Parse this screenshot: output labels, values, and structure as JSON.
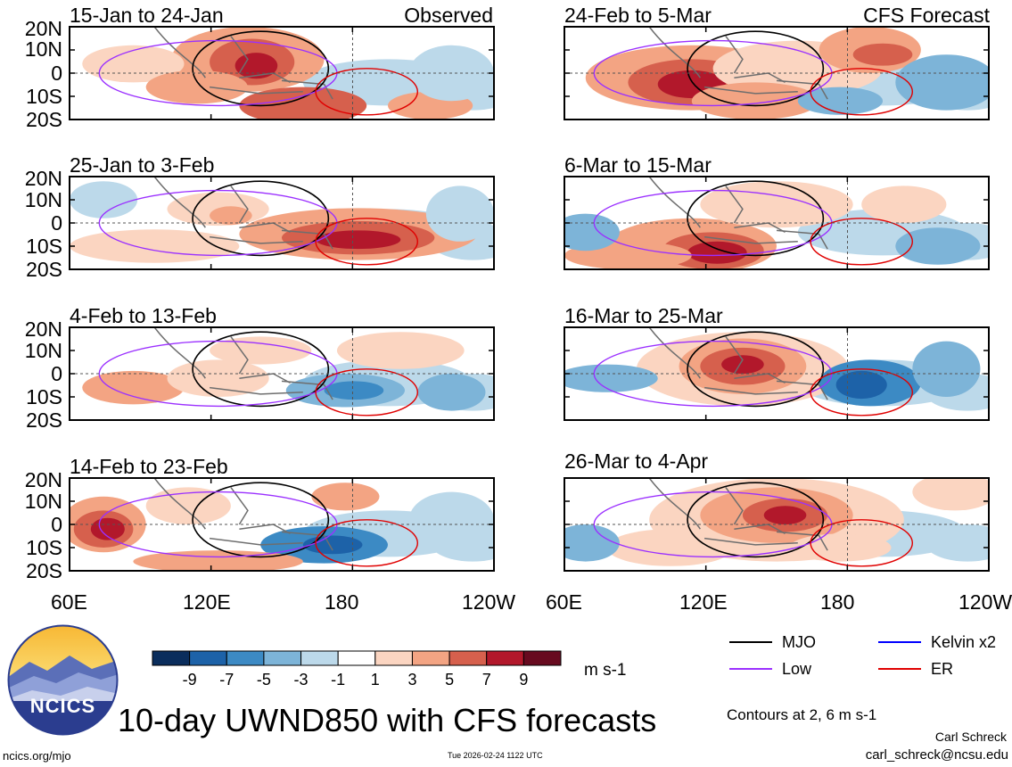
{
  "panels": [
    {
      "title": "15-Jan to 24-Jan",
      "tag": "Observed"
    },
    {
      "title": "25-Jan to 3-Feb",
      "tag": ""
    },
    {
      "title": "4-Feb to 13-Feb",
      "tag": ""
    },
    {
      "title": "14-Feb to 23-Feb",
      "tag": ""
    },
    {
      "title": "24-Feb to 5-Mar",
      "tag": "CFS Forecast"
    },
    {
      "title": "6-Mar to 15-Mar",
      "tag": ""
    },
    {
      "title": "16-Mar to 25-Mar",
      "tag": ""
    },
    {
      "title": "26-Mar to 4-Apr",
      "tag": ""
    }
  ],
  "lat_ticks": [
    "20N",
    "10N",
    "0",
    "10S",
    "20S"
  ],
  "lon_ticks": [
    "60E",
    "120E",
    "180",
    "120W"
  ],
  "colorbar": {
    "unit": "m s-1",
    "tick_labels": [
      "-9",
      "-7",
      "-5",
      "-3",
      "-1",
      "1",
      "3",
      "5",
      "7",
      "9"
    ],
    "colors": [
      "#0a2d5c",
      "#1d62a8",
      "#3c8ac4",
      "#7db4d8",
      "#bcd9ea",
      "#ffffff",
      "#fbd5c1",
      "#f3a483",
      "#d6604d",
      "#b2182b",
      "#670a1f"
    ]
  },
  "legend": {
    "items": [
      {
        "label": "MJO",
        "color": "#000000"
      },
      {
        "label": "Kelvin x2",
        "color": "#0000ff"
      },
      {
        "label": "Low",
        "color": "#9b30ff"
      },
      {
        "label": "ER",
        "color": "#e00000"
      }
    ],
    "contours_note": "Contours at 2, 6 m s-1"
  },
  "logo_text": "NCICS",
  "main_title": "10-day UWND850 with CFS forecasts",
  "author": "Carl Schreck",
  "email": "carl_schreck@ncsu.edu",
  "url": "ncics.org/mjo",
  "timestamp": "Tue 2026-02-24 1122 UTC",
  "chart_data": {
    "type": "heatmap",
    "title": "10-day UWND850 with CFS forecasts",
    "variable": "850-hPa zonal wind anomaly",
    "unit": "m s-1",
    "x_range": [
      "60E",
      "120W"
    ],
    "y_range": [
      "20S",
      "20N"
    ],
    "levels": [
      -9,
      -7,
      -5,
      -3,
      -1,
      1,
      3,
      5,
      7,
      9
    ],
    "contour_levels": [
      2,
      6
    ],
    "series": [
      "MJO",
      "Kelvin x2",
      "Low",
      "ER"
    ],
    "periods_observed": [
      "15-Jan to 24-Jan",
      "25-Jan to 3-Feb",
      "4-Feb to 13-Feb",
      "14-Feb to 23-Feb"
    ],
    "periods_forecast": [
      "24-Feb to 5-Mar",
      "6-Mar to 15-Mar",
      "16-Mar to 25-Mar",
      "26-Mar to 4-Apr"
    ]
  }
}
